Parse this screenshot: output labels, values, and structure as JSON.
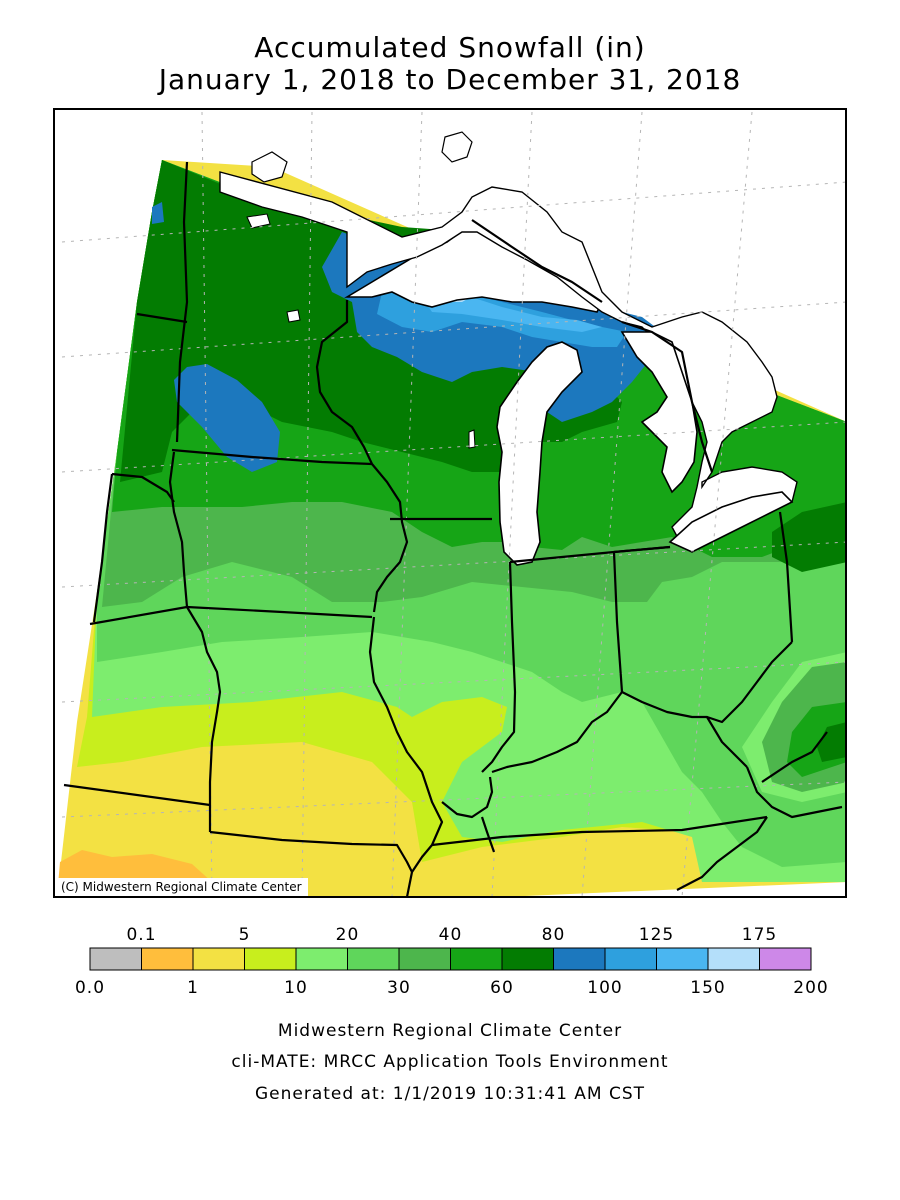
{
  "title": {
    "line1": "Accumulated Snowfall (in)",
    "line2": "January 1, 2018 to December 31, 2018"
  },
  "map": {
    "credit": "(C) Midwestern Regional Climate Center",
    "colors": {
      "water": "#ffffff",
      "state_line": "#000000",
      "grid": "#b5b5b5"
    }
  },
  "legend": {
    "upper_labels": [
      "0.1",
      "5",
      "20",
      "40",
      "80",
      "125",
      "175"
    ],
    "lower_labels": [
      "0.0",
      "1",
      "10",
      "30",
      "60",
      "100",
      "150",
      "200"
    ],
    "bins": [
      {
        "from": "0.0",
        "to": "0.1",
        "color": "#bebebe"
      },
      {
        "from": "0.1",
        "to": "1",
        "color": "#ffbe3c"
      },
      {
        "from": "1",
        "to": "5",
        "color": "#f3e143"
      },
      {
        "from": "5",
        "to": "10",
        "color": "#c8ee1d"
      },
      {
        "from": "10",
        "to": "20",
        "color": "#7ded6e"
      },
      {
        "from": "20",
        "to": "30",
        "color": "#5fd65b"
      },
      {
        "from": "30",
        "to": "40",
        "color": "#4db64c"
      },
      {
        "from": "40",
        "to": "60",
        "color": "#16a516"
      },
      {
        "from": "60",
        "to": "80",
        "color": "#037c02"
      },
      {
        "from": "80",
        "to": "100",
        "color": "#1c78be"
      },
      {
        "from": "100",
        "to": "125",
        "color": "#2ea0de"
      },
      {
        "from": "125",
        "to": "150",
        "color": "#4ab6f1"
      },
      {
        "from": "150",
        "to": "175",
        "color": "#b4dffa"
      },
      {
        "from": "175",
        "to": "200",
        "color": "#cd88e8"
      }
    ]
  },
  "footer": {
    "line1": "Midwestern Regional Climate Center",
    "line2": "cli-MATE: MRCC Application Tools Environment",
    "line3": "Generated at: 1/1/2019 10:31:41 AM CST"
  }
}
